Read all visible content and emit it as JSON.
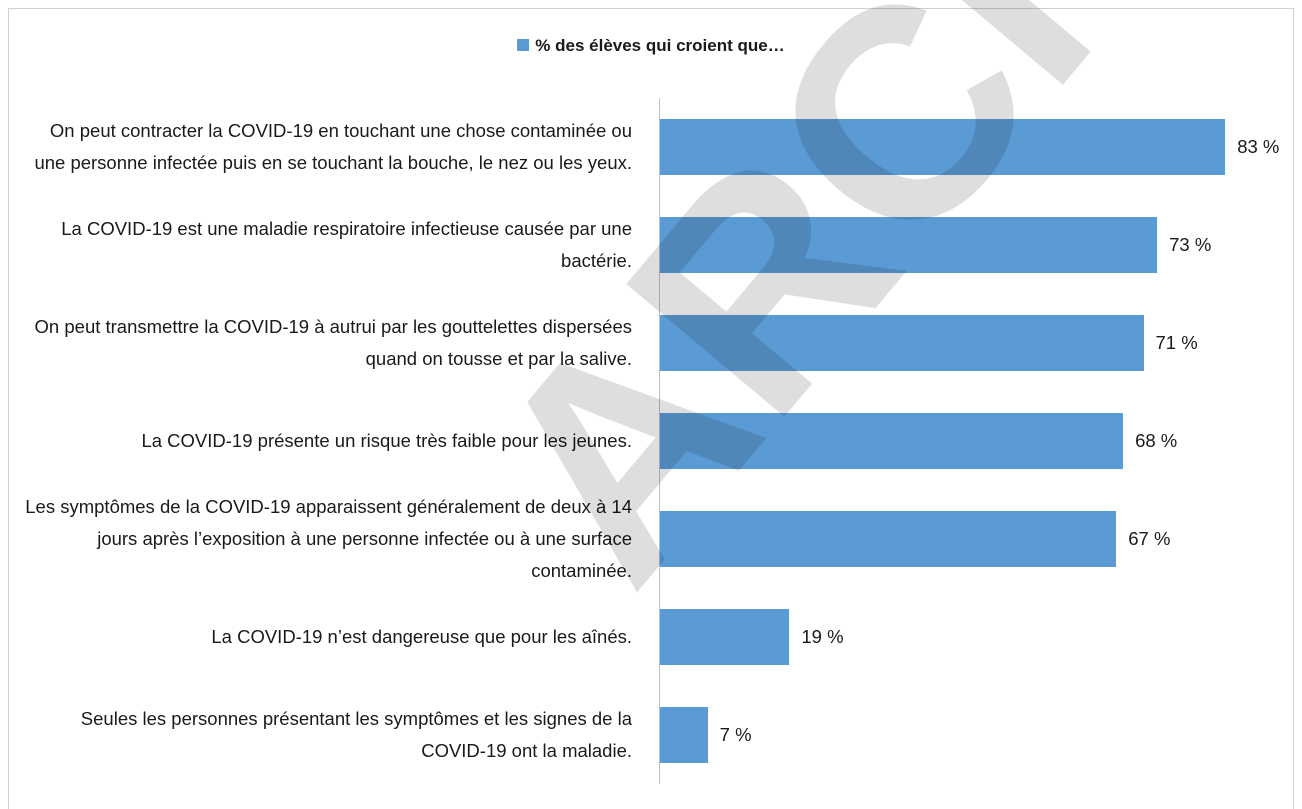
{
  "chart_data": {
    "type": "barh",
    "legend": "% des élèves qui croient que…",
    "categories": [
      "On peut contracter la COVID-19 en touchant une chose contaminée ou une personne infectée puis en se touchant la bouche, le nez ou les yeux.",
      "La COVID-19 est une maladie respiratoire infectieuse causée par une bactérie.",
      "On peut transmettre la COVID-19 à autrui par les gouttelettes dispersées quand on tousse et par la salive.",
      "La COVID-19 présente un risque très faible pour les jeunes.",
      "Les symptômes de la COVID-19 apparaissent généralement de deux à 14 jours après l’exposition à une personne infectée ou à une surface contaminée.",
      "La COVID-19 n’est dangereuse que pour les aînés.",
      "Seules les personnes présentant les symptômes et les signes de la COVID-19 ont la maladie."
    ],
    "values": [
      83,
      73,
      71,
      68,
      67,
      19,
      7
    ],
    "value_labels": [
      "83 %",
      "73 %",
      "71 %",
      "68 %",
      "67 %",
      "19 %",
      "7 %"
    ],
    "color": "#5b9bd5",
    "xlim": [
      0,
      100
    ],
    "watermark": "ARCHIVÉ"
  }
}
